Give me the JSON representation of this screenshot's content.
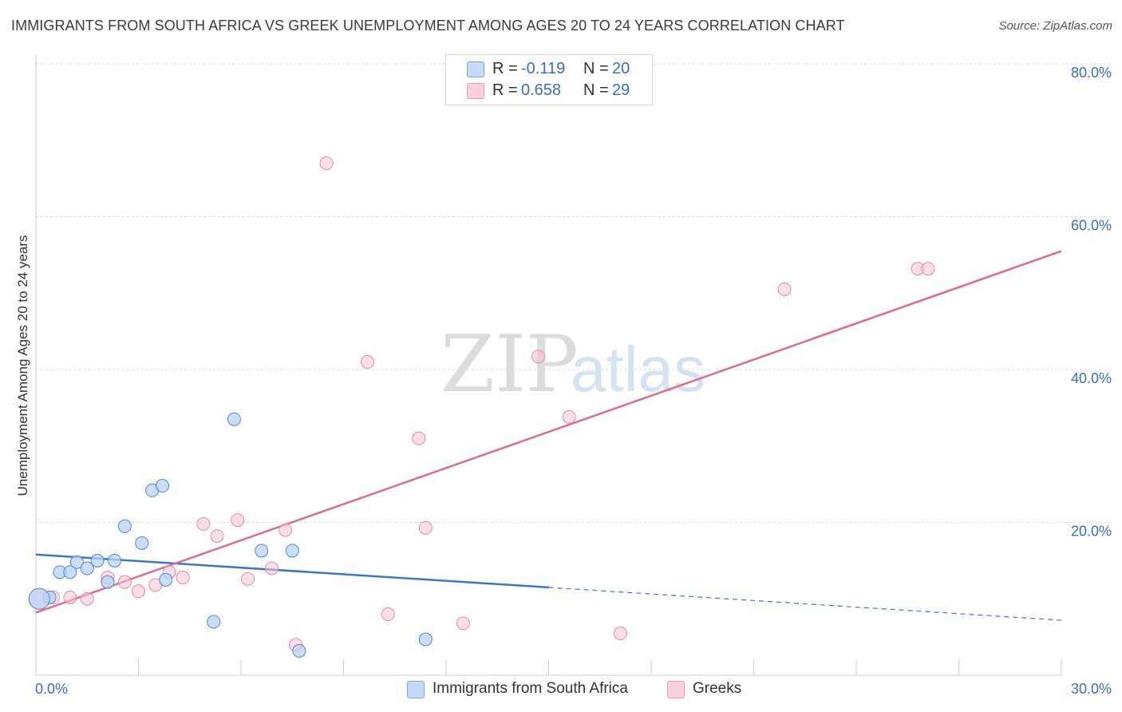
{
  "header": {
    "title": "IMMIGRANTS FROM SOUTH AFRICA VS GREEK UNEMPLOYMENT AMONG AGES 20 TO 24 YEARS CORRELATION CHART",
    "source": "Source: ZipAtlas.com"
  },
  "watermark": {
    "zip": "ZIP",
    "atlas": "atlas"
  },
  "legend_top": {
    "r_label": "R =",
    "n_label": "N =",
    "rows": [
      {
        "r": "-0.119",
        "n": "20"
      },
      {
        "r": "0.658",
        "n": "29"
      }
    ]
  },
  "legend_bottom": {
    "items": [
      "Immigrants from South Africa",
      "Greeks"
    ]
  },
  "chart_data": {
    "type": "scatter",
    "title": "IMMIGRANTS FROM SOUTH AFRICA VS GREEK UNEMPLOYMENT AMONG AGES 20 TO 24 YEARS CORRELATION CHART",
    "xlabel": "",
    "ylabel": "Unemployment Among Ages 20 to 24 years",
    "xlim": [
      0,
      30
    ],
    "ylim": [
      0,
      82
    ],
    "x_tick_labels": [
      "0.0%",
      "30.0%"
    ],
    "y_ticks": [
      20,
      40,
      60,
      80
    ],
    "y_tick_labels": [
      "20.0%",
      "40.0%",
      "60.0%",
      "80.0%"
    ],
    "grid": true,
    "colors": {
      "blue": "#3a76d0",
      "blue_fill": "#b9d3f5",
      "pink": "#e0698f",
      "pink_fill": "#f7c3d4",
      "tick_text": "#3a6fc4"
    },
    "series": [
      {
        "name": "Immigrants from South Africa",
        "color": "blue",
        "points": [
          [
            0.4,
            10.2
          ],
          [
            0.7,
            13.5
          ],
          [
            1.0,
            13.5
          ],
          [
            1.2,
            14.8
          ],
          [
            1.5,
            14.0
          ],
          [
            1.8,
            15.0
          ],
          [
            2.3,
            15.0
          ],
          [
            2.1,
            12.2
          ],
          [
            2.6,
            19.5
          ],
          [
            3.1,
            17.3
          ],
          [
            3.4,
            24.2
          ],
          [
            3.7,
            24.8
          ],
          [
            3.8,
            12.5
          ],
          [
            5.2,
            7.0
          ],
          [
            5.8,
            33.5
          ],
          [
            6.6,
            16.3
          ],
          [
            7.5,
            16.3
          ],
          [
            7.7,
            3.2
          ],
          [
            11.4,
            4.7
          ],
          [
            0.1,
            10.0
          ]
        ],
        "trend": {
          "x0": 0,
          "y0": 15.8,
          "x1": 15.0,
          "y1": 11.5,
          "x_dash_end": 30,
          "y_dash_end": 7.2
        }
      },
      {
        "name": "Greeks",
        "color": "pink",
        "points": [
          [
            0.1,
            10.0
          ],
          [
            0.5,
            10.2
          ],
          [
            1.0,
            10.2
          ],
          [
            1.5,
            10.0
          ],
          [
            2.1,
            12.8
          ],
          [
            2.6,
            12.2
          ],
          [
            3.0,
            11.0
          ],
          [
            3.5,
            11.8
          ],
          [
            3.9,
            13.5
          ],
          [
            4.3,
            12.8
          ],
          [
            4.9,
            19.8
          ],
          [
            5.3,
            18.2
          ],
          [
            5.9,
            20.3
          ],
          [
            6.2,
            12.6
          ],
          [
            6.9,
            14.0
          ],
          [
            7.3,
            19.0
          ],
          [
            7.6,
            4.0
          ],
          [
            8.5,
            67.0
          ],
          [
            9.7,
            41.0
          ],
          [
            10.3,
            8.0
          ],
          [
            11.2,
            31.0
          ],
          [
            11.4,
            19.3
          ],
          [
            12.5,
            6.8
          ],
          [
            14.7,
            41.7
          ],
          [
            15.6,
            33.8
          ],
          [
            17.1,
            5.5
          ],
          [
            21.9,
            50.5
          ],
          [
            25.8,
            53.2
          ],
          [
            26.1,
            53.2
          ]
        ],
        "trend": {
          "x0": 0,
          "y0": 8.2,
          "x1": 30,
          "y1": 55.5
        }
      }
    ]
  }
}
